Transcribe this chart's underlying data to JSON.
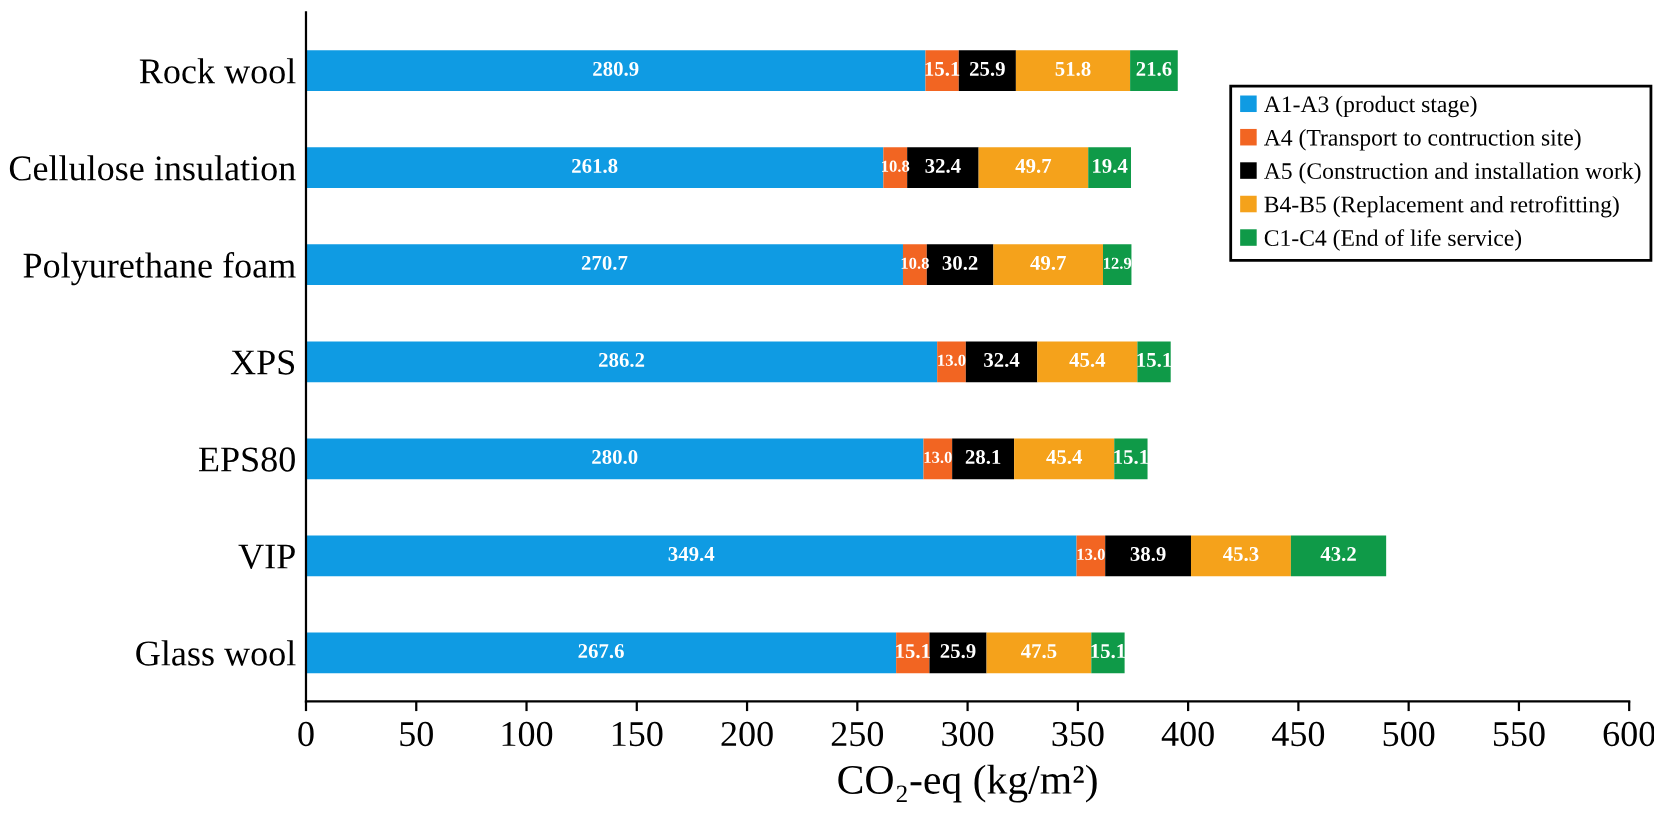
{
  "chart_data": {
    "type": "bar",
    "orientation": "horizontal",
    "stacked": true,
    "xlabel": "CO₂-eq (kg/m²)",
    "categories": [
      "Rock wool",
      "Cellulose insulation",
      "Polyurethane foam",
      "XPS",
      "EPS80",
      "VIP",
      "Glass wool"
    ],
    "series": [
      {
        "name": "A1-A3 (product stage)",
        "color": "#0f9be3",
        "values": [
          280.9,
          261.8,
          270.7,
          286.2,
          280.0,
          349.4,
          267.6
        ],
        "value_labels": [
          "280.9",
          "261.8",
          "270.7",
          "286.2",
          "280.0",
          "349.4",
          "267.6"
        ]
      },
      {
        "name": "A4 (Transport to contruction site)",
        "color": "#f26522",
        "values": [
          15.1,
          10.8,
          10.8,
          13.0,
          13.0,
          13.0,
          15.1
        ],
        "value_labels": [
          "15.1",
          "10.8",
          "10.8",
          "13.0",
          "13.0",
          "13.0",
          "15.1"
        ]
      },
      {
        "name": "A5 (Construction and installation work)",
        "color": "#000000",
        "values": [
          25.9,
          32.4,
          30.2,
          32.4,
          28.1,
          38.9,
          25.9
        ],
        "value_labels": [
          "25.9",
          "32.4",
          "30.2",
          "32.4",
          "28.1",
          "38.9",
          "25.9"
        ]
      },
      {
        "name": "B4-B5 (Replacement and retrofitting)",
        "color": "#f5a21b",
        "values": [
          51.8,
          49.7,
          49.7,
          45.4,
          45.4,
          45.3,
          47.5
        ],
        "value_labels": [
          "51.8",
          "49.7",
          "49.7",
          "45.4",
          "45.4",
          "45.3",
          "47.5"
        ]
      },
      {
        "name": "C1-C4 (End of life service)",
        "color": "#0f9a48",
        "values": [
          21.6,
          19.4,
          12.9,
          15.1,
          15.1,
          43.2,
          15.1
        ],
        "value_labels": [
          "21.6",
          "19.4",
          "12.9",
          "15.1",
          "15.1",
          "43.2",
          "15.1"
        ]
      }
    ],
    "xlim": [
      0,
      600
    ],
    "xticks": [
      0,
      50,
      100,
      150,
      200,
      250,
      300,
      350,
      400,
      450,
      500,
      550,
      600
    ],
    "legend": "top right"
  }
}
